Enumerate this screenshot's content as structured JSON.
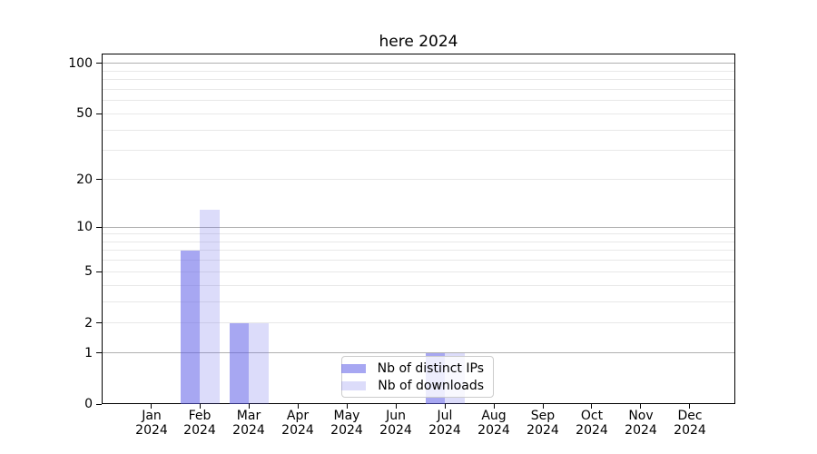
{
  "chart_data": {
    "type": "bar",
    "title": "here 2024",
    "categories": [
      "Jan",
      "Feb",
      "Mar",
      "Apr",
      "May",
      "Jun",
      "Jul",
      "Aug",
      "Sep",
      "Oct",
      "Nov",
      "Dec"
    ],
    "year_label": "2024",
    "series": [
      {
        "name": "Nb of distinct IPs",
        "color": "rgba(95,95,231,0.55)",
        "values": [
          0,
          7,
          2,
          0,
          0,
          0,
          1,
          0,
          0,
          0,
          0,
          0
        ]
      },
      {
        "name": "Nb of downloads",
        "color": "rgba(95,95,231,0.22)",
        "values": [
          0,
          13,
          2,
          0,
          0,
          0,
          1,
          0,
          0,
          0,
          0,
          0
        ]
      }
    ],
    "yscale": "log1p",
    "ylim": [
      0,
      113
    ],
    "yticks": [
      0,
      1,
      2,
      5,
      10,
      20,
      50,
      100
    ],
    "grid_dark_at": [
      1,
      10,
      100
    ],
    "grid_light_at": [
      2,
      3,
      4,
      5,
      6,
      7,
      8,
      9,
      20,
      30,
      40,
      50,
      60,
      70,
      80,
      90
    ],
    "grid": true,
    "legend_position": "lower-center",
    "xlabel": "",
    "ylabel": ""
  },
  "colors": {
    "background": "#ffffff",
    "spine": "#000000",
    "grid_dark": "#b0b0b0",
    "grid_light": "#e8e8e8",
    "text": "#000000",
    "legend_border": "#cccccc",
    "legend_bg": "rgba(255,255,255,0.8)"
  }
}
